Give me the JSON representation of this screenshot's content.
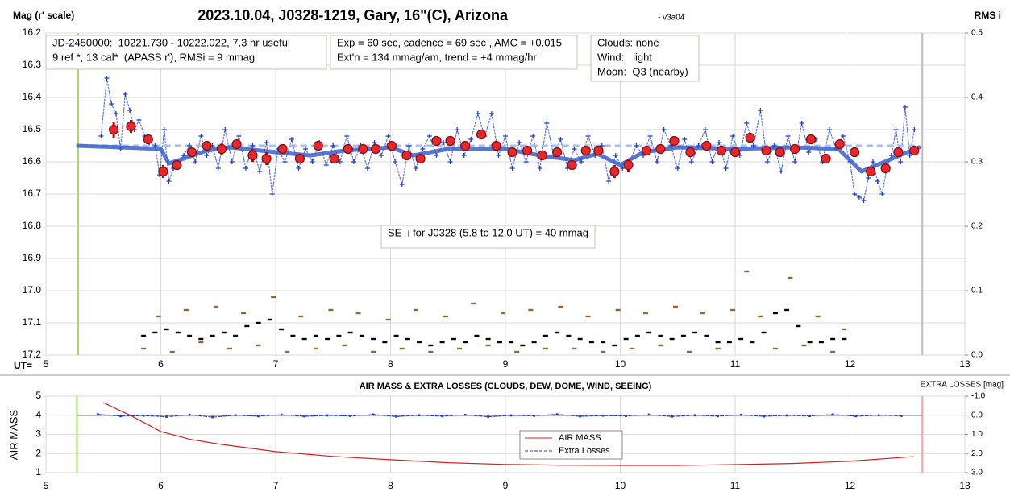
{
  "chart_data": [
    {
      "type": "scatter",
      "title": "2023.10.04, J0328-1219, Gary, 16\"(C), Arizona",
      "subtitle": "- v3a04",
      "ylabel": "Mag (r' scale)",
      "y2label": "RMS i",
      "xlabel": "UT=",
      "xlim": [
        5,
        13
      ],
      "xticks": [
        5,
        6,
        7,
        8,
        9,
        10,
        11,
        12,
        13
      ],
      "ylim": [
        16.2,
        17.2
      ],
      "yinvert": true,
      "yticks": [
        16.2,
        16.3,
        16.4,
        16.5,
        16.6,
        16.7,
        16.8,
        16.9,
        {
          "value": 17.0,
          "label": "17.0"
        },
        17.1,
        17.2
      ],
      "y2lim": [
        0,
        0.5
      ],
      "y2ticks": [
        {
          "value": 0,
          "label": "0.0"
        },
        0.1,
        0.2,
        0.3,
        0.4,
        0.5
      ],
      "grid": true,
      "vlines": [
        {
          "x": 5.28,
          "color": "#a6d96a"
        },
        {
          "x": 12.63,
          "color": "#bdbdbd"
        }
      ],
      "reference_line": {
        "value": 16.55,
        "x": [
          5.3,
          12.6
        ],
        "color": "#a9bfe8"
      },
      "annotations": [
        {
          "lines": [
            "JD-2450000:  10221.730 - 10222.022, 7.3 hr useful",
            "9 ref *, 13 cal*  (APASS r'), RMSi = 9 mmag"
          ]
        },
        {
          "lines": [
            "Exp = 60 sec, cadence = 69 sec , AMC = +0.015",
            "Ext'n = 134 mmag/am, trend = +4 mmag/hr"
          ]
        },
        {
          "lines": [
            "Clouds: none",
            "Wind:   light",
            "Moon:  Q3 (nearby)"
          ]
        },
        {
          "lines": [
            "SE_i for J0328 (5.8 to 12.0 UT) = 40 mmag"
          ]
        }
      ],
      "series": [
        {
          "color": "#1f3fbf",
          "marker": "plus",
          "line": "dotted",
          "x": [
            5.48,
            5.53,
            5.57,
            5.61,
            5.65,
            5.69,
            5.73,
            5.77,
            5.81,
            5.86,
            5.9,
            5.95,
            5.99,
            6.03,
            6.07,
            6.11,
            6.15,
            6.2,
            6.25,
            6.3,
            6.35,
            6.4,
            6.45,
            6.5,
            6.56,
            6.62,
            6.68,
            6.74,
            6.8,
            6.86,
            6.92,
            6.97,
            7.02,
            7.08,
            7.14,
            7.2,
            7.26,
            7.32,
            7.38,
            7.44,
            7.5,
            7.56,
            7.62,
            7.68,
            7.74,
            7.8,
            7.86,
            7.92,
            7.98,
            8.04,
            8.1,
            8.16,
            8.22,
            8.28,
            8.34,
            8.4,
            8.46,
            8.52,
            8.58,
            8.64,
            8.7,
            8.76,
            8.82,
            8.88,
            8.94,
            9.0,
            9.06,
            9.12,
            9.18,
            9.24,
            9.3,
            9.36,
            9.42,
            9.48,
            9.54,
            9.6,
            9.66,
            9.72,
            9.78,
            9.84,
            9.9,
            9.96,
            10.02,
            10.08,
            10.14,
            10.2,
            10.26,
            10.32,
            10.38,
            10.44,
            10.5,
            10.56,
            10.62,
            10.68,
            10.74,
            10.8,
            10.86,
            10.92,
            10.98,
            11.04,
            11.1,
            11.16,
            11.22,
            11.28,
            11.34,
            11.4,
            11.46,
            11.52,
            11.58,
            11.64,
            11.7,
            11.76,
            11.82,
            11.88,
            11.94,
            12.0,
            12.04,
            12.08,
            12.12,
            12.16,
            12.2,
            12.24,
            12.28,
            12.32,
            12.36,
            12.4,
            12.44,
            12.48,
            12.52,
            12.56
          ],
          "values": [
            16.52,
            16.34,
            16.42,
            16.45,
            16.56,
            16.39,
            16.44,
            16.5,
            16.47,
            16.52,
            16.54,
            16.55,
            16.64,
            16.5,
            16.66,
            16.62,
            16.6,
            16.58,
            16.55,
            16.6,
            16.52,
            16.58,
            16.55,
            16.62,
            16.5,
            16.6,
            16.52,
            16.62,
            16.55,
            16.63,
            16.54,
            16.7,
            16.56,
            16.6,
            16.53,
            16.62,
            16.56,
            16.6,
            16.54,
            16.61,
            16.55,
            16.6,
            16.52,
            16.6,
            16.55,
            16.62,
            16.54,
            16.58,
            16.52,
            16.6,
            16.67,
            16.55,
            16.62,
            16.56,
            16.52,
            16.58,
            16.54,
            16.6,
            16.5,
            16.58,
            16.53,
            16.45,
            16.52,
            16.45,
            16.58,
            16.52,
            16.62,
            16.54,
            16.6,
            16.52,
            16.62,
            16.48,
            16.58,
            16.53,
            16.62,
            16.56,
            16.6,
            16.52,
            16.58,
            16.55,
            16.66,
            16.58,
            16.62,
            16.6,
            16.55,
            16.58,
            16.52,
            16.6,
            16.5,
            16.55,
            16.62,
            16.53,
            16.6,
            16.55,
            16.5,
            16.6,
            16.54,
            16.62,
            16.52,
            16.58,
            16.48,
            16.55,
            16.44,
            16.6,
            16.55,
            16.63,
            16.52,
            16.6,
            16.48,
            16.57,
            16.53,
            16.6,
            16.5,
            16.56,
            16.52,
            16.6,
            16.7,
            16.71,
            16.72,
            16.65,
            16.6,
            16.66,
            16.7,
            16.62,
            16.58,
            16.5,
            16.6,
            16.43,
            16.58,
            16.5
          ]
        },
        {
          "color": "#3a5fcd",
          "marker": "none",
          "line": "thick",
          "x": [
            5.28,
            6.0,
            6.07,
            6.2,
            6.4,
            6.6,
            7.0,
            7.3,
            7.6,
            8.0,
            8.2,
            8.5,
            9.0,
            9.3,
            9.6,
            9.8,
            10.0,
            10.2,
            10.5,
            11.0,
            11.5,
            11.9,
            12.1,
            12.3,
            12.6
          ],
          "values": [
            16.55,
            16.56,
            16.605,
            16.59,
            16.565,
            16.555,
            16.57,
            16.58,
            16.565,
            16.555,
            16.58,
            16.56,
            16.56,
            16.58,
            16.595,
            16.575,
            16.61,
            16.57,
            16.555,
            16.56,
            16.555,
            16.56,
            16.63,
            16.6,
            16.555
          ]
        },
        {
          "color": "#e8262b",
          "marker": "circle",
          "line": "none",
          "error_color": "#c00000",
          "x": [
            5.59,
            5.74,
            5.89,
            6.02,
            6.14,
            6.27,
            6.4,
            6.53,
            6.66,
            6.8,
            6.92,
            7.06,
            7.21,
            7.37,
            7.51,
            7.63,
            7.76,
            7.87,
            8.01,
            8.14,
            8.26,
            8.4,
            8.52,
            8.65,
            8.79,
            8.92,
            9.06,
            9.19,
            9.32,
            9.45,
            9.58,
            9.7,
            9.81,
            9.95,
            10.07,
            10.23,
            10.35,
            10.47,
            10.61,
            10.75,
            10.88,
            11.0,
            11.13,
            11.27,
            11.39,
            11.52,
            11.66,
            11.79,
            11.91,
            12.04,
            12.18,
            12.31,
            12.42,
            12.56
          ],
          "values": [
            16.5,
            16.49,
            16.53,
            16.63,
            16.61,
            16.57,
            16.55,
            16.56,
            16.545,
            16.58,
            16.59,
            16.56,
            16.59,
            16.55,
            16.59,
            16.56,
            16.56,
            16.56,
            16.55,
            16.58,
            16.59,
            16.535,
            16.535,
            16.55,
            16.515,
            16.55,
            16.57,
            16.565,
            16.58,
            16.57,
            16.61,
            16.565,
            16.565,
            16.63,
            16.61,
            16.565,
            16.56,
            16.535,
            16.57,
            16.55,
            16.565,
            16.57,
            16.525,
            16.565,
            16.57,
            16.56,
            16.53,
            16.59,
            16.545,
            16.57,
            16.63,
            16.62,
            16.57,
            16.565
          ],
          "errors": [
            0.025,
            0.02,
            0.01,
            0.02,
            0.01,
            0.01,
            0.01,
            0.02,
            0.01,
            0.02,
            0.02,
            0.01,
            0.01,
            0.01,
            0.01,
            0.01,
            0.01,
            0.01,
            0.01,
            0.01,
            0.01,
            0.01,
            0.01,
            0.01,
            0.015,
            0.01,
            0.01,
            0.01,
            0.015,
            0.01,
            0.01,
            0.01,
            0.01,
            0.02,
            0.02,
            0.01,
            0.01,
            0.01,
            0.01,
            0.01,
            0.01,
            0.01,
            0.01,
            0.01,
            0.01,
            0.01,
            0.01,
            0.01,
            0.01,
            0.01,
            0.01,
            0.01,
            0.01,
            0.01
          ]
        },
        {
          "axis": "y2",
          "color": "#000000",
          "marker": "dash",
          "line": "none",
          "x": [
            5.85,
            5.95,
            6.05,
            6.15,
            6.25,
            6.35,
            6.45,
            6.55,
            6.65,
            6.75,
            6.85,
            6.95,
            7.05,
            7.15,
            7.25,
            7.35,
            7.45,
            7.55,
            7.65,
            7.75,
            7.85,
            7.95,
            8.05,
            8.15,
            8.25,
            8.35,
            8.45,
            8.55,
            8.65,
            8.75,
            8.85,
            8.95,
            9.05,
            9.15,
            9.25,
            9.35,
            9.45,
            9.55,
            9.65,
            9.75,
            9.85,
            9.95,
            10.05,
            10.15,
            10.25,
            10.35,
            10.45,
            10.55,
            10.65,
            10.75,
            10.85,
            10.95,
            11.05,
            11.15,
            11.25,
            11.35,
            11.45,
            11.55,
            11.65,
            11.75,
            11.85,
            11.95
          ],
          "values": [
            0.03,
            0.035,
            0.04,
            0.035,
            0.03,
            0.025,
            0.03,
            0.035,
            0.03,
            0.045,
            0.05,
            0.055,
            0.04,
            0.03,
            0.025,
            0.03,
            0.025,
            0.03,
            0.035,
            0.03,
            0.025,
            0.02,
            0.03,
            0.025,
            0.02,
            0.015,
            0.02,
            0.025,
            0.02,
            0.03,
            0.025,
            0.02,
            0.02,
            0.015,
            0.02,
            0.03,
            0.035,
            0.03,
            0.025,
            0.02,
            0.02,
            0.015,
            0.025,
            0.03,
            0.035,
            0.03,
            0.025,
            0.03,
            0.035,
            0.03,
            0.02,
            0.02,
            0.025,
            0.02,
            0.035,
            0.065,
            0.07,
            0.045,
            0.02,
            0.02,
            0.025,
            0.025
          ]
        },
        {
          "axis": "y2",
          "color": "#a0622d",
          "marker": "dash",
          "line": "none",
          "x": [
            5.85,
            5.98,
            6.1,
            6.22,
            6.35,
            6.48,
            6.6,
            6.72,
            6.85,
            6.98,
            7.1,
            7.22,
            7.35,
            7.48,
            7.6,
            7.72,
            7.85,
            7.98,
            8.1,
            8.22,
            8.35,
            8.48,
            8.6,
            8.72,
            8.85,
            8.98,
            9.1,
            9.22,
            9.35,
            9.48,
            9.6,
            9.72,
            9.85,
            9.98,
            10.1,
            10.22,
            10.35,
            10.48,
            10.6,
            10.72,
            10.85,
            10.98,
            11.1,
            11.22,
            11.35,
            11.48,
            11.6,
            11.72,
            11.85,
            11.95
          ],
          "values": [
            0.01,
            0.06,
            0.005,
            0.07,
            0.02,
            0.075,
            0.01,
            0.065,
            0.015,
            0.09,
            0.005,
            0.06,
            0.01,
            0.07,
            0.015,
            0.065,
            0.005,
            0.055,
            0.01,
            0.07,
            0.005,
            0.06,
            0.01,
            0.08,
            0.015,
            0.065,
            0.005,
            0.07,
            0.01,
            0.075,
            0.01,
            0.06,
            0.005,
            0.07,
            0.01,
            0.065,
            0.015,
            0.075,
            0.005,
            0.065,
            0.01,
            0.07,
            0.13,
            0.06,
            0.01,
            0.12,
            0.015,
            0.06,
            0.005,
            0.04
          ]
        }
      ]
    },
    {
      "type": "line",
      "title": "AIR MASS & EXTRA LOSSES (CLOUDS, DEW, DOME, WIND, SEEING)",
      "ylabel": "AIR MASS",
      "y2label": "EXTRA LOSSES [mag]",
      "xlim": [
        5,
        13
      ],
      "xticks": [
        5,
        6,
        7,
        8,
        9,
        10,
        11,
        12,
        13
      ],
      "ylim": [
        1,
        5
      ],
      "yticks": [
        1,
        2,
        3,
        4,
        5
      ],
      "y2lim": [
        -1.0,
        3.0
      ],
      "y2invert": true,
      "y2ticks": [
        {
          "value": -1.0,
          "label": "-1.0"
        },
        {
          "value": 0.0,
          "label": "0.0"
        },
        {
          "value": 1.0,
          "label": "1.0"
        },
        {
          "value": 2.0,
          "label": "2.0"
        },
        {
          "value": 3.0,
          "label": "3.0"
        }
      ],
      "grid": true,
      "legend": "center",
      "vlines": [
        {
          "x": 5.27,
          "color": "#a6d96a"
        },
        {
          "x": 12.63,
          "color": "#f4a6a6"
        }
      ],
      "reference_line": {
        "value": 0.0,
        "axis": "y2",
        "x": [
          5.27,
          12.63
        ],
        "color": "#000000"
      },
      "series": [
        {
          "name": "AIR MASS",
          "color": "#d62020",
          "marker": "none",
          "line": "solid",
          "x": [
            5.5,
            5.75,
            6.0,
            6.25,
            6.5,
            7.0,
            7.5,
            8.0,
            8.5,
            9.0,
            9.5,
            10.0,
            10.5,
            11.0,
            11.5,
            12.0,
            12.55
          ],
          "values": [
            4.66,
            3.95,
            3.15,
            2.75,
            2.5,
            2.1,
            1.85,
            1.68,
            1.52,
            1.43,
            1.39,
            1.38,
            1.38,
            1.42,
            1.48,
            1.6,
            1.84
          ]
        },
        {
          "name": "Extra Losses",
          "axis": "y2",
          "color": "#1f3fbf",
          "marker": "square",
          "line": "dashed",
          "x": [
            5.45,
            5.65,
            5.85,
            6.05,
            6.25,
            6.45,
            6.65,
            6.85,
            7.05,
            7.25,
            7.45,
            7.65,
            7.85,
            8.05,
            8.25,
            8.45,
            8.65,
            8.85,
            9.05,
            9.25,
            9.45,
            9.65,
            9.85,
            10.05,
            10.25,
            10.45,
            10.65,
            10.85,
            11.05,
            11.25,
            11.45,
            11.65,
            11.85,
            12.05,
            12.25,
            12.45
          ],
          "values": [
            -0.05,
            0.05,
            0.02,
            0.08,
            -0.02,
            0.1,
            0.0,
            0.05,
            -0.03,
            0.06,
            0.01,
            0.04,
            -0.04,
            0.07,
            0.0,
            0.05,
            -0.02,
            0.08,
            0.01,
            0.03,
            -0.05,
            0.06,
            0.02,
            0.04,
            -0.03,
            0.07,
            0.0,
            0.05,
            -0.02,
            0.06,
            0.01,
            0.04,
            -0.04,
            0.05,
            0.0,
            0.03
          ]
        }
      ]
    }
  ]
}
